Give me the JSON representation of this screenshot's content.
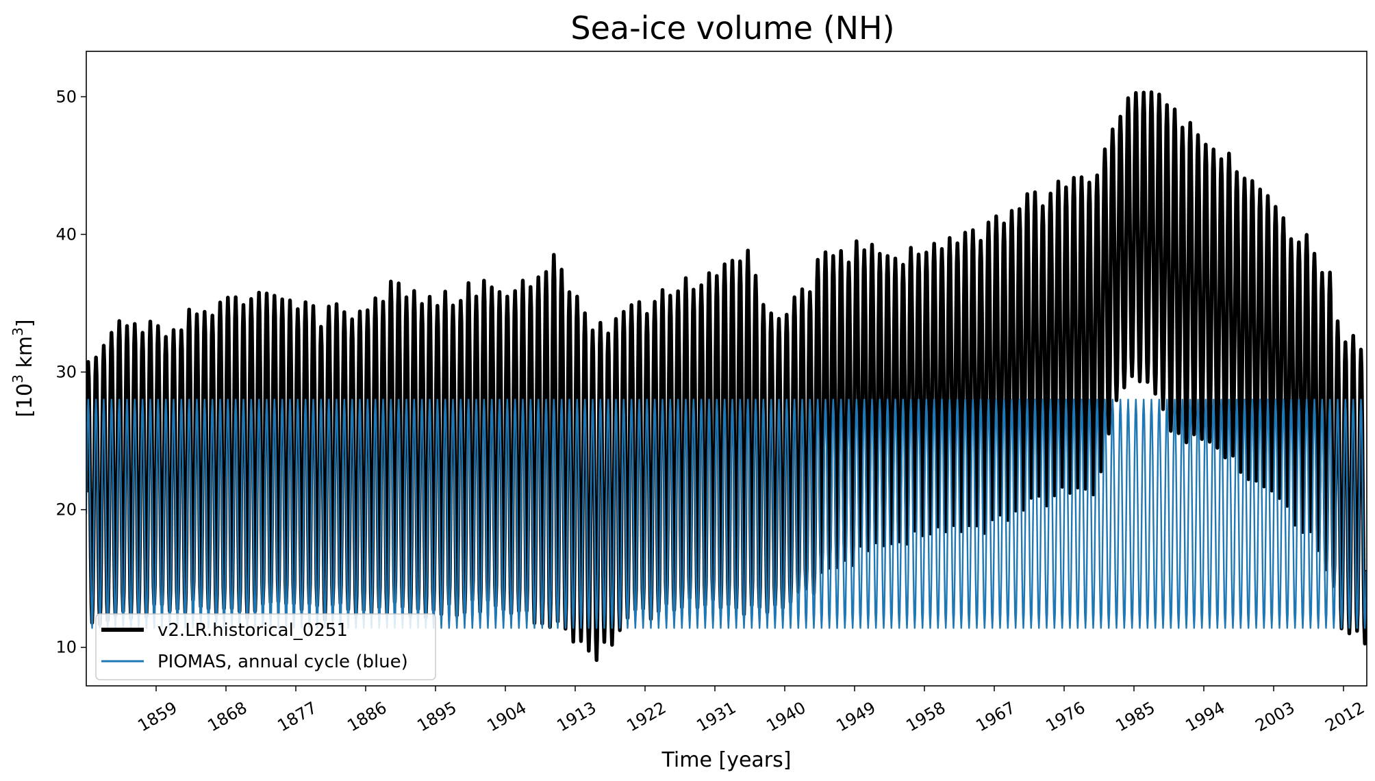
{
  "chart_data": {
    "type": "line",
    "title": "Sea-ice volume (NH)",
    "xlabel": "Time [years]",
    "ylabel_prefix": "[10",
    "ylabel_sup": "3",
    "ylabel_unit": " km",
    "ylabel_sup2": "3",
    "ylabel_suffix": "]",
    "xlim": [
      1850,
      2015
    ],
    "ylim": [
      7.2,
      53.3
    ],
    "x_ticks": [
      1859,
      1868,
      1877,
      1886,
      1895,
      1904,
      1913,
      1922,
      1931,
      1940,
      1949,
      1958,
      1967,
      1976,
      1985,
      1994,
      2003,
      2012
    ],
    "y_ticks": [
      10,
      20,
      30,
      40,
      50
    ],
    "legend_location": "lower-left",
    "series": [
      {
        "name": "v2.LR.historical_0251",
        "color": "#000000",
        "style": "thick",
        "description": "monthly model sea-ice volume; seasonal cycle between annual max and min",
        "x": [
          1850,
          1855,
          1860,
          1865,
          1870,
          1875,
          1880,
          1885,
          1890,
          1895,
          1900,
          1905,
          1910,
          1914,
          1916,
          1918,
          1920,
          1925,
          1930,
          1935,
          1938,
          1940,
          1945,
          1950,
          1955,
          1960,
          1965,
          1970,
          1975,
          1980,
          1983,
          1985,
          1987,
          1990,
          1995,
          2000,
          2005,
          2010,
          2012,
          2015
        ],
        "annual_max": [
          31,
          34,
          33,
          34.5,
          35.5,
          35,
          34,
          34.5,
          36.5,
          35,
          36,
          35.5,
          38.5,
          35,
          33,
          34,
          34,
          36,
          37,
          38.5,
          34,
          34,
          38,
          39,
          38.5,
          39,
          40,
          42,
          43,
          44.5,
          48.5,
          51,
          50.5,
          48.5,
          47,
          43.5,
          40.5,
          37.5,
          32,
          32
        ],
        "annual_min": [
          12,
          12.5,
          13,
          13,
          12.5,
          13,
          12.5,
          12.8,
          13,
          12.5,
          13,
          12.5,
          12,
          10.5,
          9.5,
          11,
          12,
          13,
          13.5,
          12.5,
          12.8,
          13,
          15,
          17,
          18,
          18.5,
          18.5,
          20,
          21,
          21.5,
          28.5,
          30,
          29.5,
          25,
          25.5,
          22,
          20,
          16,
          11,
          10.5
        ]
      },
      {
        "name": "PIOMAS, annual cycle (blue)",
        "color": "#1f77b4",
        "style": "thin",
        "description": "repeating PIOMAS climatological annual cycle",
        "cycle_max": 28,
        "cycle_min": 11.4
      }
    ]
  }
}
